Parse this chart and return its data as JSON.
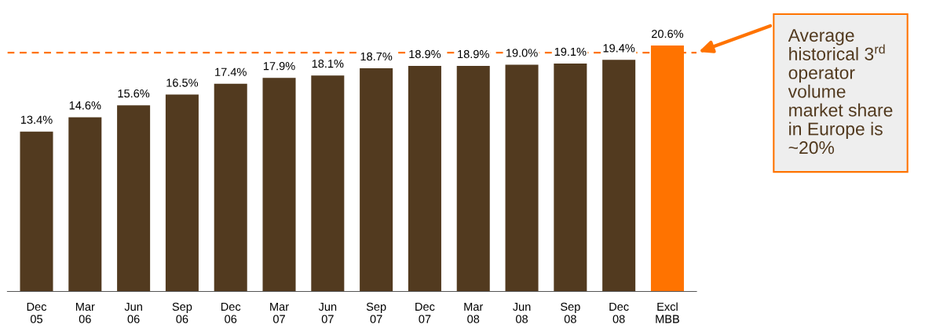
{
  "chart_data": {
    "type": "bar",
    "categories": [
      "Dec\n05",
      "Mar\n06",
      "Jun\n06",
      "Sep\n06",
      "Dec\n06",
      "Mar\n07",
      "Jun\n07",
      "Sep\n07",
      "Dec\n07",
      "Mar\n08",
      "Jun\n08",
      "Sep\n08",
      "Dec\n08",
      "Excl\nMBB"
    ],
    "values": [
      13.4,
      14.6,
      15.6,
      16.5,
      17.4,
      17.9,
      18.1,
      18.7,
      18.9,
      18.9,
      19.0,
      19.1,
      19.4,
      20.6
    ],
    "colors": [
      "#523a1f",
      "#523a1f",
      "#523a1f",
      "#523a1f",
      "#523a1f",
      "#523a1f",
      "#523a1f",
      "#523a1f",
      "#523a1f",
      "#523a1f",
      "#523a1f",
      "#523a1f",
      "#523a1f",
      "#ff7300"
    ],
    "value_labels": [
      "13.4%",
      "14.6%",
      "15.6%",
      "16.5%",
      "17.4%",
      "17.9%",
      "18.1%",
      "18.7%",
      "18.9%",
      "18.9%",
      "19.0%",
      "19.1%",
      "19.4%",
      "20.6%"
    ],
    "ref_lines": [
      {
        "axis": "y",
        "value": 20,
        "color": "#ff7300",
        "line_style": "dashed"
      }
    ],
    "annotations": [
      "Average\nhistorical 3$^{rd}$\noperator\nvolume\nmarket share\nin Europe is\n~20%"
    ],
    "tick_labels": "x",
    "grid": false,
    "legend": false
  }
}
